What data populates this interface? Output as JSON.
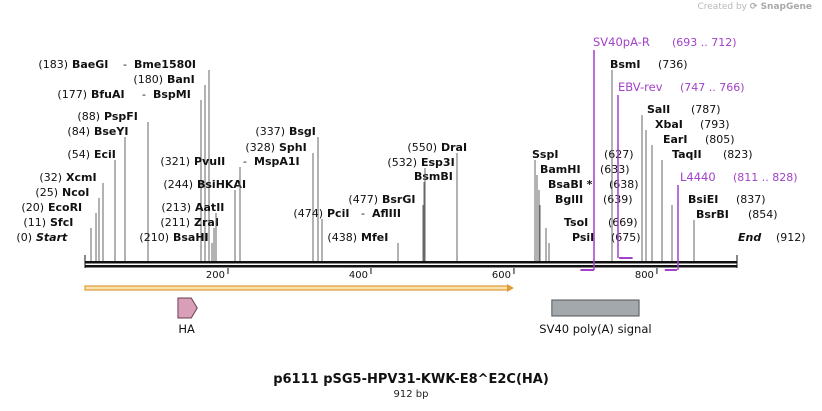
{
  "credit": {
    "prefix": "Created by",
    "brand": "SnapGene"
  },
  "plasmid": {
    "name": "p6111 pSG5-HPV31-KWK-E8^E2C(HA)",
    "length_label": "912 bp",
    "length": 912
  },
  "ruler": {
    "ticks": [
      "200",
      "400",
      "600",
      "800"
    ]
  },
  "sites": [
    {
      "pos": "(0)",
      "name": "Start",
      "bp": 0,
      "italic": true
    },
    {
      "pos": "(11)",
      "name": "SfcI",
      "bp": 11
    },
    {
      "pos": "(20)",
      "name": "EcoRI",
      "bp": 20
    },
    {
      "pos": "(25)",
      "name": "NcoI",
      "bp": 25
    },
    {
      "pos": "(32)",
      "name": "XcmI",
      "bp": 32
    },
    {
      "pos": "(54)",
      "name": "EciI",
      "bp": 54
    },
    {
      "pos": "(84)",
      "name": "BseYI",
      "bp": 84
    },
    {
      "pos": "(88)",
      "name": "PspFI",
      "bp": 88
    },
    {
      "pos": "(177)",
      "name": "BfuAI",
      "bp": 177,
      "extra": "BspMI"
    },
    {
      "pos": "(180)",
      "name": "BanI",
      "bp": 180
    },
    {
      "pos": "(183)",
      "name": "BaeGI",
      "bp": 183,
      "extra": "Bme1580I"
    },
    {
      "pos": "(210)",
      "name": "BsaHI",
      "bp": 210
    },
    {
      "pos": "(211)",
      "name": "ZraI",
      "bp": 211
    },
    {
      "pos": "(213)",
      "name": "AatII",
      "bp": 213
    },
    {
      "pos": "(244)",
      "name": "BsiHKAI",
      "bp": 244
    },
    {
      "pos": "(321)",
      "name": "PvuII",
      "bp": 321,
      "extra": "MspA1I"
    },
    {
      "pos": "(328)",
      "name": "SphI",
      "bp": 328
    },
    {
      "pos": "(337)",
      "name": "BsgI",
      "bp": 337
    },
    {
      "pos": "(438)",
      "name": "MfeI",
      "bp": 438
    },
    {
      "pos": "(474)",
      "name": "PciI",
      "bp": 474,
      "extra": "AflIII"
    },
    {
      "pos": "(477)",
      "name": "BsrGI",
      "bp": 477
    },
    {
      "pos": "",
      "name": "BsmBI",
      "bp": 532
    },
    {
      "pos": "(532)",
      "name": "Esp3I",
      "bp": 532
    },
    {
      "pos": "(550)",
      "name": "DraI",
      "bp": 550
    },
    {
      "pos": "(627)",
      "name": "SspI",
      "bp": 627
    },
    {
      "pos": "(633)",
      "name": "BamHI",
      "bp": 633
    },
    {
      "pos": "(638)",
      "name": "BsaBI *",
      "bp": 638
    },
    {
      "pos": "(639)",
      "name": "BglII",
      "bp": 639
    },
    {
      "pos": "(669)",
      "name": "TsoI",
      "bp": 669
    },
    {
      "pos": "(675)",
      "name": "PsiI",
      "bp": 675
    },
    {
      "pos": "(736)",
      "name": "BsmI",
      "bp": 736
    },
    {
      "pos": "(787)",
      "name": "SalI",
      "bp": 787
    },
    {
      "pos": "(793)",
      "name": "XbaI",
      "bp": 793
    },
    {
      "pos": "(805)",
      "name": "EarI",
      "bp": 805
    },
    {
      "pos": "(823)",
      "name": "TaqII",
      "bp": 823
    },
    {
      "pos": "(837)",
      "name": "BsiEI",
      "bp": 837
    },
    {
      "pos": "(854)",
      "name": "BsrBI",
      "bp": 854
    },
    {
      "pos": "(912)",
      "name": "End",
      "bp": 912,
      "italic": true
    }
  ],
  "primers": [
    {
      "name": "SV40pA-R",
      "range": "(693 .. 712)",
      "start": 693,
      "end": 712
    },
    {
      "name": "EBV-rev",
      "range": "(747 .. 766)",
      "start": 747,
      "end": 766
    },
    {
      "name": "L4440",
      "range": "(811 .. 828)",
      "start": 811,
      "end": 828
    }
  ],
  "features": [
    {
      "name": "HA",
      "start": 130,
      "end": 157,
      "kind": "arrow"
    },
    {
      "name": "SV40 poly(A) signal",
      "start": 653,
      "end": 775,
      "kind": "box"
    }
  ],
  "orf": {
    "start": 0,
    "end": 600
  },
  "colors": {
    "primer": "#a241c9",
    "orf_fill": "#f7e3ad",
    "orf_stroke": "#e09a35",
    "ha_fill": "#d8a0b8",
    "polya_fill": "#a3a8ad"
  }
}
